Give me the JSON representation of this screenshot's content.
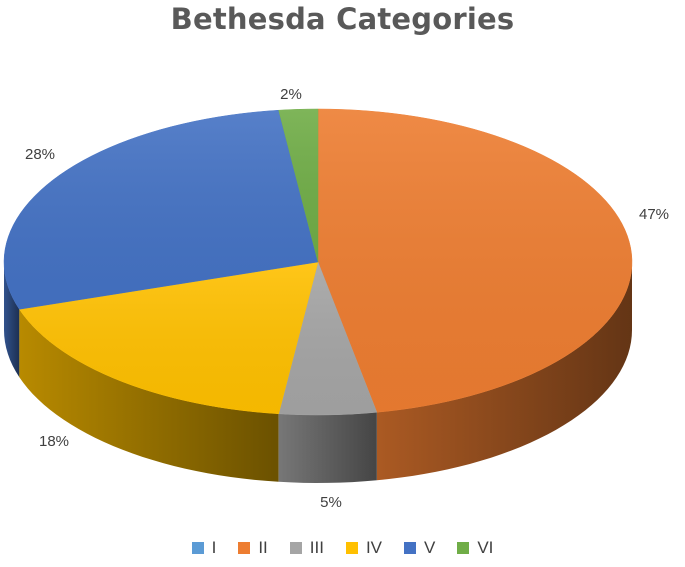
{
  "chart_data": {
    "type": "pie",
    "title": "Bethesda Categories",
    "style": "3d-exploded-none",
    "labels": [
      "I",
      "II",
      "III",
      "IV",
      "V",
      "VI"
    ],
    "values": [
      0,
      47,
      5,
      18,
      28,
      2
    ],
    "value_labels": [
      "",
      "47%",
      "5%",
      "18%",
      "28%",
      "2%"
    ],
    "colors": [
      "#5B9BD5",
      "#ED7D31",
      "#A5A5A5",
      "#FFC000",
      "#4472C4",
      "#70AD47"
    ],
    "legend_position": "bottom"
  }
}
